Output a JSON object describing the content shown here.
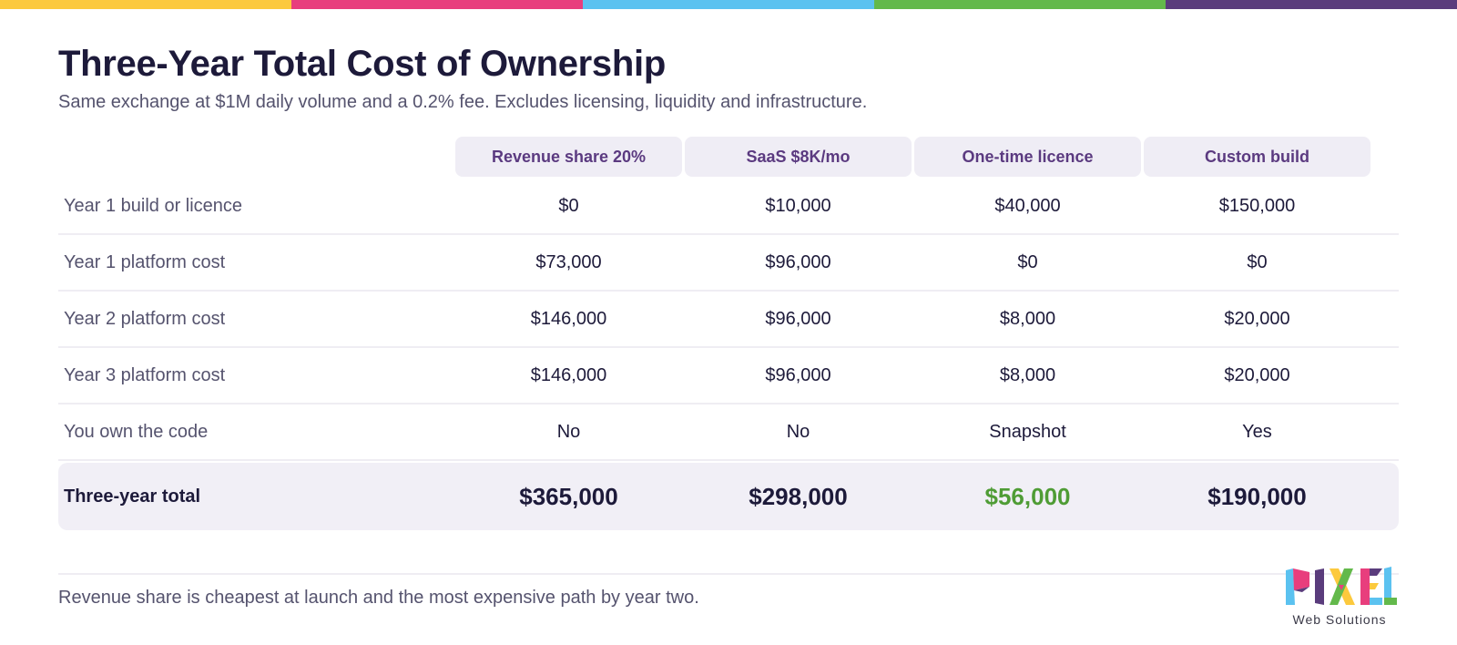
{
  "top_bar_colors": [
    "#fcc93d",
    "#e83e7d",
    "#5bc2f0",
    "#63b94b",
    "#5a3c7c"
  ],
  "header": {
    "title": "Three-Year Total Cost of Ownership",
    "subtitle": "Same exchange at $1M daily volume and a 0.2% fee. Excludes licensing, liquidity and infrastructure."
  },
  "table": {
    "columns": [
      "Revenue share 20%",
      "SaaS $8K/mo",
      "One-time licence",
      "Custom build"
    ],
    "rows": [
      {
        "label": "Year 1 build or licence",
        "values": [
          "$0",
          "$10,000",
          "$40,000",
          "$150,000"
        ]
      },
      {
        "label": "Year 1 platform cost",
        "values": [
          "$73,000",
          "$96,000",
          "$0",
          "$0"
        ]
      },
      {
        "label": "Year 2 platform cost",
        "values": [
          "$146,000",
          "$96,000",
          "$8,000",
          "$20,000"
        ]
      },
      {
        "label": "Year 3 platform cost",
        "values": [
          "$146,000",
          "$96,000",
          "$8,000",
          "$20,000"
        ]
      },
      {
        "label": "You own the code",
        "values": [
          "No",
          "No",
          "Snapshot",
          "Yes"
        ]
      }
    ],
    "total": {
      "label": "Three-year total",
      "values": [
        "$365,000",
        "$298,000",
        "$56,000",
        "$190,000"
      ],
      "highlight_index": 2,
      "highlight_color": "#4f9c35"
    }
  },
  "footnote": "Revenue share is cheapest at launch and the most expensive path by year two.",
  "logo": {
    "wordmark": "PIXEL",
    "caption": "Web Solutions"
  }
}
